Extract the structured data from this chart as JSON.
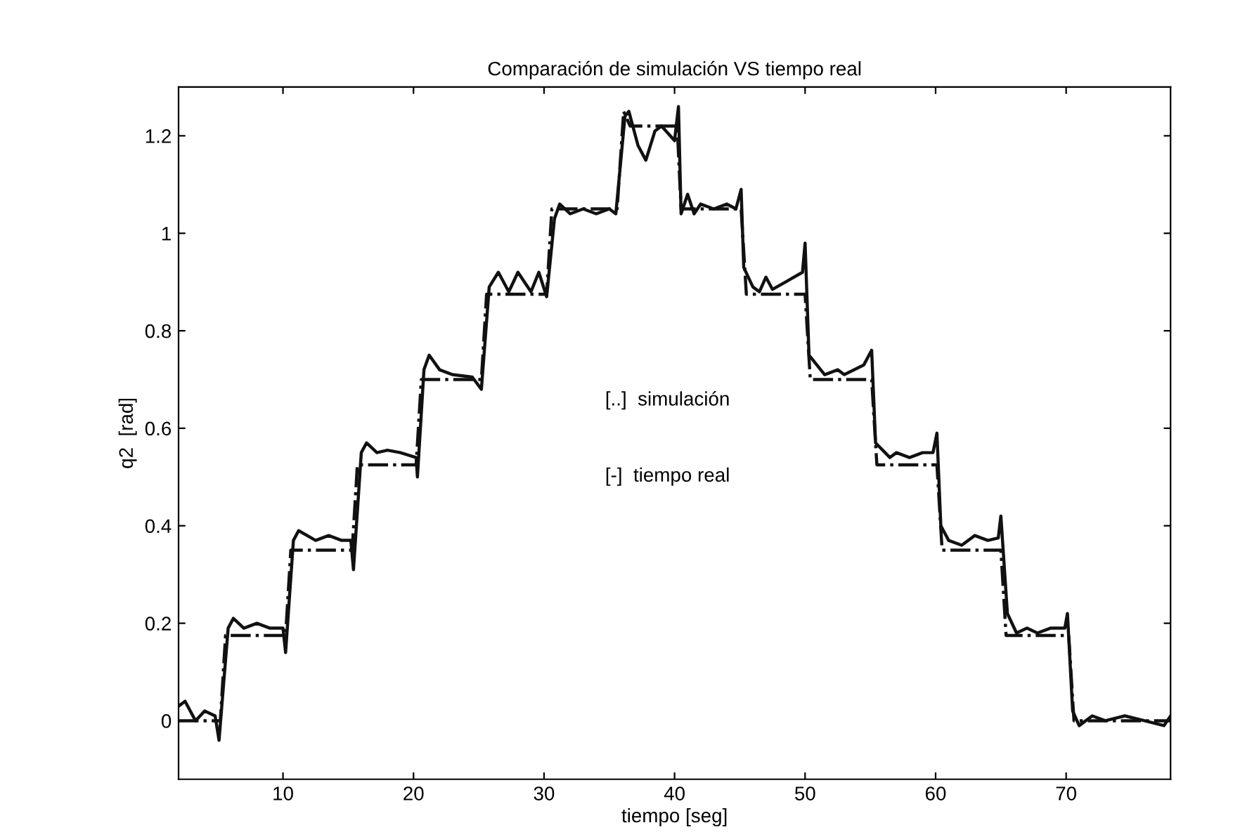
{
  "chart_data": {
    "type": "line",
    "title": "Comparación de simulación VS tiempo real",
    "xlabel": "tiempo [seg]",
    "ylabel": "q2  [rad]",
    "annotations": [
      "[..]  simulación",
      "[-]  tiempo real"
    ],
    "series": [
      {
        "color": "#111111",
        "line_style": "solid",
        "x": [
          2,
          2.5,
          3.3,
          4,
          4.8,
          5.1,
          5.8,
          6.2,
          7,
          8,
          9,
          10,
          10.2,
          10.8,
          11.2,
          12.5,
          13.5,
          14.5,
          15.2,
          15.4,
          16,
          16.4,
          17.2,
          18,
          19,
          20.2,
          20.3,
          20.8,
          21.2,
          22,
          23,
          24.5,
          25.2,
          25.8,
          26.5,
          27.3,
          28,
          29,
          29.6,
          30.2,
          30.8,
          31.2,
          32,
          33,
          34,
          35,
          35.5,
          36.2,
          36.5,
          37.2,
          37.8,
          38.5,
          39,
          40,
          40.3,
          40.5,
          41,
          41.5,
          42,
          43,
          44,
          44.7,
          45.1,
          45.3,
          46,
          46.5,
          47,
          47.5,
          48.5,
          49.8,
          50,
          50.3,
          51.5,
          52.5,
          53,
          54.5,
          55.1,
          55.4,
          56.5,
          57,
          58,
          59,
          59.8,
          60.1,
          60.4,
          61,
          62,
          63,
          64,
          64.8,
          65,
          65.5,
          66.2,
          67,
          67.8,
          68.8,
          69.9,
          70.1,
          70.5,
          71,
          72,
          73,
          74.5,
          76,
          77.5,
          78
        ],
        "values": [
          0.03,
          0.04,
          0.0,
          0.02,
          0.01,
          -0.04,
          0.19,
          0.21,
          0.19,
          0.2,
          0.19,
          0.19,
          0.14,
          0.37,
          0.39,
          0.37,
          0.38,
          0.37,
          0.37,
          0.31,
          0.55,
          0.57,
          0.55,
          0.555,
          0.55,
          0.54,
          0.5,
          0.72,
          0.75,
          0.72,
          0.71,
          0.705,
          0.68,
          0.89,
          0.92,
          0.88,
          0.92,
          0.88,
          0.92,
          0.87,
          1.03,
          1.06,
          1.04,
          1.05,
          1.04,
          1.05,
          1.04,
          1.24,
          1.25,
          1.18,
          1.15,
          1.21,
          1.22,
          1.19,
          1.26,
          1.04,
          1.08,
          1.04,
          1.06,
          1.05,
          1.06,
          1.05,
          1.09,
          0.93,
          0.89,
          0.88,
          0.91,
          0.885,
          0.9,
          0.92,
          0.98,
          0.75,
          0.71,
          0.72,
          0.71,
          0.73,
          0.76,
          0.57,
          0.54,
          0.55,
          0.54,
          0.55,
          0.55,
          0.59,
          0.4,
          0.37,
          0.36,
          0.38,
          0.37,
          0.375,
          0.42,
          0.22,
          0.18,
          0.19,
          0.18,
          0.19,
          0.19,
          0.22,
          0.02,
          -0.01,
          0.01,
          0.0,
          0.01,
          0.0,
          -0.01,
          0.01
        ]
      },
      {
        "color": "#111111",
        "line_style": "dashed",
        "x": [
          2,
          5.2,
          5.6,
          10.2,
          10.6,
          15.3,
          15.7,
          20.2,
          20.6,
          25.2,
          25.6,
          30.2,
          30.6,
          35.6,
          36.1,
          36.6,
          40.2,
          40.5,
          45.1,
          45.5,
          50.0,
          50.4,
          55.1,
          55.5,
          60.1,
          60.5,
          65.0,
          65.4,
          70.2,
          70.6,
          78
        ],
        "values": [
          0,
          0,
          0.175,
          0.175,
          0.35,
          0.35,
          0.525,
          0.525,
          0.7,
          0.7,
          0.875,
          0.875,
          1.05,
          1.05,
          1.25,
          1.22,
          1.22,
          1.05,
          1.05,
          0.875,
          0.875,
          0.7,
          0.7,
          0.525,
          0.525,
          0.35,
          0.35,
          0.175,
          0.175,
          0,
          0
        ]
      }
    ],
    "xlim": [
      2,
      78
    ],
    "ylim": [
      -0.12,
      1.3
    ],
    "xticks": [
      10,
      20,
      30,
      40,
      50,
      60,
      70
    ],
    "yticks": [
      0,
      0.2,
      0.4,
      0.6,
      0.8,
      1,
      1.2
    ],
    "grid": false,
    "legend": false
  }
}
